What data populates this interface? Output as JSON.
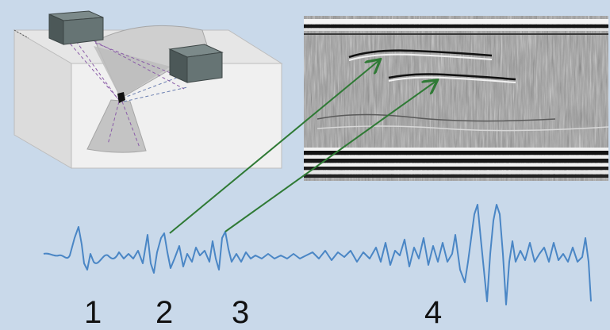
{
  "markers": [
    "1",
    "2",
    "3",
    "4"
  ],
  "colors": {
    "background": "#c9d9ea",
    "waveform": "#4a86c5",
    "arrows": "#2f7a35",
    "block_face": "#eeeeee",
    "block_side": "#d6d6d6",
    "transducer": "#5e6b6b",
    "ray_lines": "#8a5ca8"
  },
  "icons": {
    "transducer_left": "transducer-box",
    "transducer_right": "transducer-box",
    "defect": "flaw-point"
  }
}
